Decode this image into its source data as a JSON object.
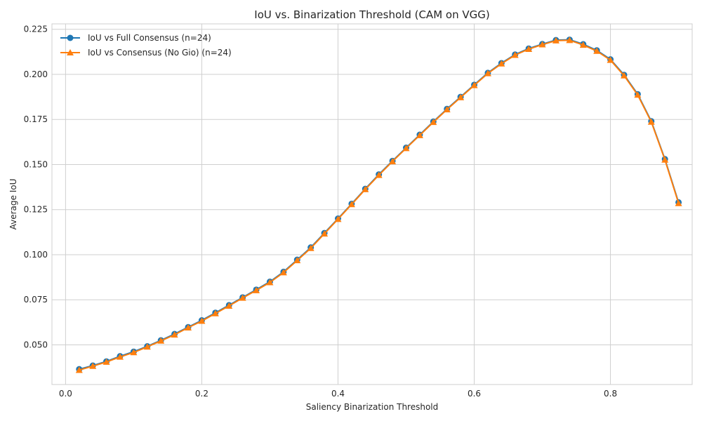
{
  "chart_data": {
    "type": "line",
    "title": "IoU vs. Binarization Threshold (CAM on VGG)",
    "xlabel": "Saliency Binarization Threshold",
    "ylabel": "Average IoU",
    "xlim": [
      -0.02,
      0.92
    ],
    "ylim": [
      0.028,
      0.228
    ],
    "xticks": [
      0.0,
      0.2,
      0.4,
      0.6,
      0.8
    ],
    "xtick_labels": [
      "0.0",
      "0.2",
      "0.4",
      "0.6",
      "0.8"
    ],
    "yticks": [
      0.05,
      0.075,
      0.1,
      0.125,
      0.15,
      0.175,
      0.2,
      0.225
    ],
    "ytick_labels": [
      "0.050",
      "0.075",
      "0.100",
      "0.125",
      "0.150",
      "0.175",
      "0.200",
      "0.225"
    ],
    "grid": true,
    "legend_position": "top-left",
    "x": [
      0.02,
      0.04,
      0.06,
      0.08,
      0.1,
      0.12,
      0.14,
      0.16,
      0.18,
      0.2,
      0.22,
      0.24,
      0.26,
      0.28,
      0.3,
      0.32,
      0.34,
      0.36,
      0.38,
      0.4,
      0.42,
      0.44,
      0.46,
      0.48,
      0.5,
      0.52,
      0.54,
      0.56,
      0.58,
      0.6,
      0.62,
      0.64,
      0.66,
      0.68,
      0.7,
      0.72,
      0.74,
      0.76,
      0.78,
      0.8,
      0.82,
      0.84,
      0.86,
      0.88,
      0.9
    ],
    "series": [
      {
        "name": "IoU vs Full Consensus (n=24)",
        "color": "#1f77b4",
        "marker": "circle",
        "values": [
          0.0365,
          0.0385,
          0.0408,
          0.0437,
          0.0462,
          0.0492,
          0.0525,
          0.056,
          0.0598,
          0.0636,
          0.0678,
          0.072,
          0.0763,
          0.0806,
          0.085,
          0.0905,
          0.0972,
          0.104,
          0.112,
          0.12,
          0.1282,
          0.1365,
          0.1445,
          0.152,
          0.1593,
          0.1665,
          0.1738,
          0.1808,
          0.1875,
          0.1942,
          0.2008,
          0.2062,
          0.211,
          0.2143,
          0.2168,
          0.219,
          0.2192,
          0.2167,
          0.2133,
          0.2083,
          0.1997,
          0.189,
          0.174,
          0.153,
          0.129
        ]
      },
      {
        "name": "IoU vs Consensus (No Gio) (n=24)",
        "color": "#ff7f0e",
        "marker": "triangle",
        "values": [
          0.036,
          0.0382,
          0.0405,
          0.0433,
          0.0458,
          0.0489,
          0.0522,
          0.0556,
          0.0595,
          0.0632,
          0.0674,
          0.0716,
          0.076,
          0.0802,
          0.0846,
          0.0901,
          0.0968,
          0.1036,
          0.1116,
          0.1197,
          0.1279,
          0.1362,
          0.1441,
          0.1517,
          0.159,
          0.1662,
          0.1735,
          0.1805,
          0.1872,
          0.1939,
          0.2005,
          0.2059,
          0.2107,
          0.214,
          0.2165,
          0.2187,
          0.2189,
          0.2163,
          0.2129,
          0.2079,
          0.1993,
          0.1886,
          0.1736,
          0.1526,
          0.1285
        ]
      }
    ]
  }
}
